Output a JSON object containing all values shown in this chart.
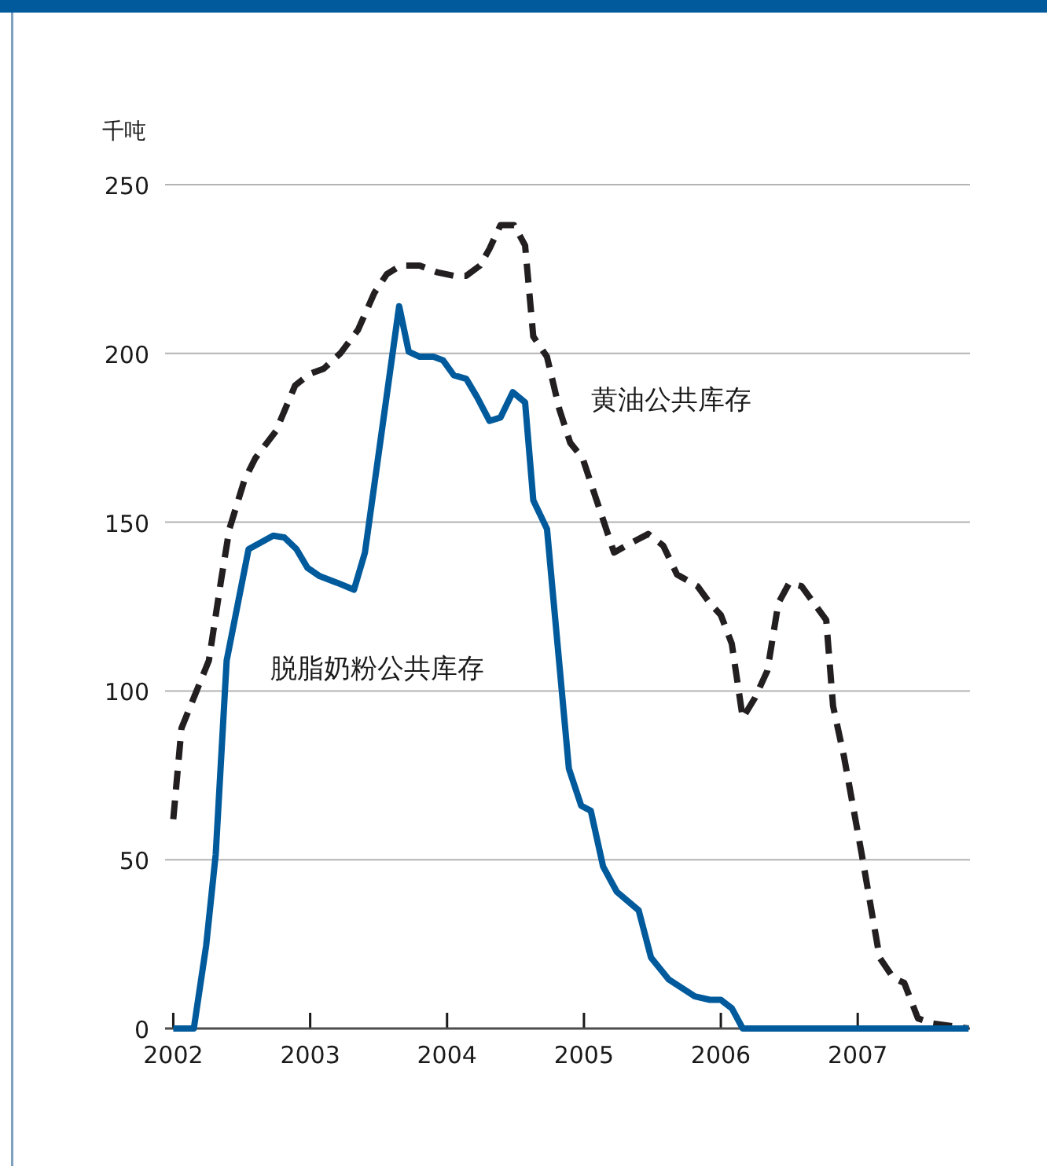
{
  "chart_data": {
    "type": "line",
    "ylabel": "千吨",
    "xlim": [
      2001.94,
      2007.82
    ],
    "ylim": [
      0,
      250
    ],
    "xticks": [
      {
        "value": 2002,
        "label": "2002"
      },
      {
        "value": 2003,
        "label": "2003"
      },
      {
        "value": 2004,
        "label": "2004"
      },
      {
        "value": 2005,
        "label": "2005"
      },
      {
        "value": 2006,
        "label": "2006"
      },
      {
        "value": 2007,
        "label": "2007"
      }
    ],
    "yticks": [
      0,
      50,
      100,
      150,
      200,
      250
    ],
    "grid": "y",
    "marker": "none",
    "series": [
      {
        "name": "黄油公共库存",
        "color": "#231f20",
        "line_style": "dashed",
        "x": [
          2002.0,
          2002.06,
          2002.17,
          2002.26,
          2002.35,
          2002.41,
          2002.52,
          2002.6,
          2002.75,
          2002.89,
          2003.0,
          2003.1,
          2003.22,
          2003.35,
          2003.47,
          2003.56,
          2003.66,
          2003.8,
          2003.93,
          2004.05,
          2004.14,
          2004.24,
          2004.31,
          2004.39,
          2004.49,
          2004.57,
          2004.63,
          2004.73,
          2004.82,
          2004.9,
          2004.99,
          2005.08,
          2005.22,
          2005.35,
          2005.47,
          2005.58,
          2005.68,
          2005.83,
          2005.92,
          2006.0,
          2006.08,
          2006.16,
          2006.25,
          2006.34,
          2006.42,
          2006.5,
          2006.59,
          2006.77,
          2006.82,
          2006.9,
          2007.03,
          2007.16,
          2007.26,
          2007.34,
          2007.44,
          2007.55,
          2007.81
        ],
        "values": [
          62,
          89,
          100,
          109,
          133,
          148,
          162.5,
          169,
          177,
          190.5,
          194,
          195.5,
          200,
          207,
          218,
          223.5,
          226,
          226,
          224,
          223,
          223,
          226,
          231,
          238,
          238,
          232,
          205,
          199,
          183.5,
          173.5,
          169,
          158,
          141,
          144,
          146.5,
          143,
          134.5,
          131,
          126,
          122.5,
          114,
          92,
          98,
          106,
          126,
          132,
          131,
          121,
          95.5,
          80.5,
          51.5,
          21,
          15,
          13.5,
          3,
          1.5,
          0
        ]
      },
      {
        "name": "脱脂奶粉公共库存",
        "color": "#005a9c",
        "line_style": "solid",
        "x": [
          2002.0,
          2002.15,
          2002.24,
          2002.31,
          2002.39,
          2002.55,
          2002.73,
          2002.81,
          2002.9,
          2002.98,
          2003.07,
          2003.2,
          2003.32,
          2003.4,
          2003.65,
          2003.72,
          2003.8,
          2003.9,
          2003.97,
          2004.05,
          2004.14,
          2004.22,
          2004.31,
          2004.39,
          2004.48,
          2004.57,
          2004.63,
          2004.73,
          2004.89,
          2004.98,
          2005.05,
          2005.14,
          2005.24,
          2005.4,
          2005.49,
          2005.62,
          2005.81,
          2005.92,
          2006.0,
          2006.08,
          2006.16,
          2007.81
        ],
        "values": [
          0,
          0,
          24.5,
          51.6,
          109,
          142,
          146,
          145.5,
          142,
          136.5,
          134,
          132,
          130,
          141,
          214,
          200.5,
          199,
          199,
          198,
          193.5,
          192.5,
          187,
          180,
          181,
          188.5,
          185.5,
          156.5,
          148,
          77,
          66,
          64.5,
          48,
          40.5,
          35,
          21,
          14.5,
          9.5,
          8.5,
          8.5,
          6,
          0,
          0
        ]
      }
    ]
  }
}
